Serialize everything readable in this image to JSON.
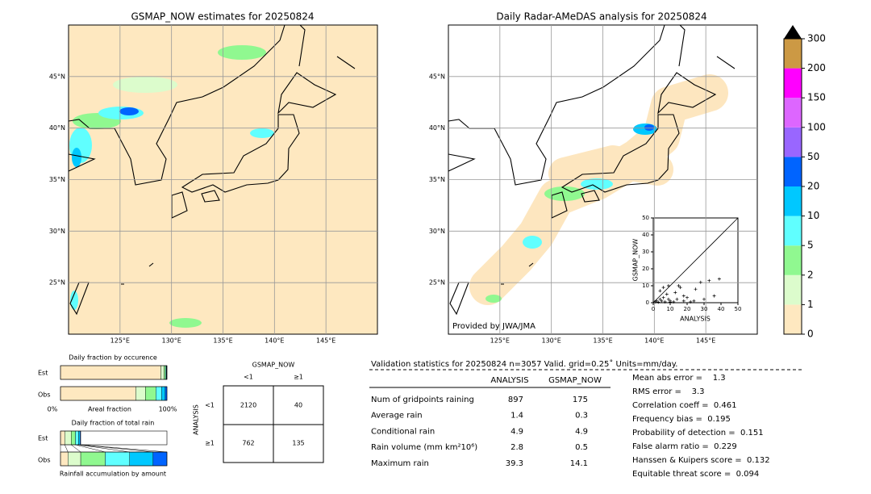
{
  "maps": [
    {
      "title": "GSMAP_NOW estimates for 20250824",
      "xlim": [
        120,
        150
      ],
      "ylim": [
        20,
        50
      ],
      "xticks": [
        {
          "value": 125,
          "label": "125°E"
        },
        {
          "value": 130,
          "label": "130°E"
        },
        {
          "value": 135,
          "label": "135°E"
        },
        {
          "value": 140,
          "label": "140°E"
        },
        {
          "value": 145,
          "label": "145°E"
        }
      ],
      "yticks": [
        {
          "value": 25,
          "label": "25°N"
        },
        {
          "value": 30,
          "label": "30°N"
        },
        {
          "value": 35,
          "label": "35°N"
        },
        {
          "value": 40,
          "label": "40°N"
        },
        {
          "value": 45,
          "label": "45°N"
        }
      ]
    },
    {
      "title": "Daily Radar-AMeDAS analysis for 20250824",
      "credit": "Provided by JWA/JMA",
      "xlim": [
        120,
        150
      ],
      "ylim": [
        20,
        50
      ],
      "xticks": [
        {
          "value": 125,
          "label": "125°E"
        },
        {
          "value": 130,
          "label": "130°E"
        },
        {
          "value": 135,
          "label": "135°E"
        },
        {
          "value": 140,
          "label": "140°E"
        },
        {
          "value": 145,
          "label": "145°E"
        }
      ],
      "yticks": [
        {
          "value": 25,
          "label": "25°N"
        },
        {
          "value": 30,
          "label": "30°N"
        },
        {
          "value": 35,
          "label": "35°N"
        },
        {
          "value": 40,
          "label": "40°N"
        },
        {
          "value": 45,
          "label": "45°N"
        }
      ]
    }
  ],
  "colorbar": {
    "ticks": [
      0,
      1,
      2,
      5,
      10,
      20,
      50,
      100,
      150,
      200,
      300
    ],
    "colors": [
      "#fee8c0",
      "#dcfccc",
      "#90f890",
      "#60ffff",
      "#00c8ff",
      "#0064ff",
      "#9966ff",
      "#dd66ff",
      "#ff00ff",
      "#cc9944"
    ]
  },
  "scatter": {
    "type": "scatter",
    "xlabel": "ANALYSIS",
    "ylabel": "GSMAP_NOW",
    "xlim": [
      0,
      50
    ],
    "ylim": [
      0,
      50
    ],
    "xticks": [
      0,
      10,
      20,
      30,
      40,
      50
    ],
    "yticks": [
      0,
      10,
      20,
      30,
      40,
      50
    ],
    "x": [
      1,
      2,
      3,
      4,
      5,
      6,
      7,
      8,
      9,
      10,
      12,
      14,
      16,
      18,
      20,
      22,
      25,
      28,
      30,
      33,
      36,
      39,
      4,
      6,
      9,
      13,
      15,
      18,
      24,
      10
    ],
    "y": [
      0.5,
      1,
      0.3,
      2,
      1,
      3,
      0.5,
      5,
      2,
      1,
      0.5,
      2,
      9,
      1,
      3,
      0.5,
      8,
      12,
      2,
      13,
      4,
      14,
      7,
      9,
      10,
      6,
      10,
      4,
      1,
      0.3
    ]
  },
  "occurrence": {
    "title": "Daily fraction by occurence",
    "rows": [
      "Est",
      "Obs"
    ],
    "xlabel": "Areal fraction",
    "left": "0%",
    "right": "100%",
    "colors": [
      "#fee8c0",
      "#dcfccc",
      "#90f890",
      "#60ffff",
      "#00c8ff",
      "#0064ff"
    ],
    "est": [
      94.3,
      3.0,
      1.5,
      0.7,
      0.3,
      0.2
    ],
    "obs": [
      70.7,
      9.1,
      9.8,
      5.3,
      3.5,
      1.6
    ]
  },
  "total_rain": {
    "title": "Daily fraction of total rain",
    "rows": [
      "Est",
      "Obs"
    ],
    "xlabel": "Rainfall accumulation by amount",
    "colors": [
      "#fee8c0",
      "#dcfccc",
      "#90f890",
      "#60ffff",
      "#00c8ff",
      "#0064ff"
    ],
    "est": [
      4,
      6,
      4,
      3,
      1.5,
      0.5
    ],
    "obs": [
      7,
      12,
      23,
      23,
      22,
      13
    ]
  },
  "contingency": {
    "title": "GSMAP_NOW",
    "col_labels": [
      "<1",
      "≥1"
    ],
    "row_title": "ANALYSIS",
    "row_labels": [
      "<1",
      "≥1"
    ],
    "cells": [
      [
        2120,
        40
      ],
      [
        762,
        135
      ]
    ]
  },
  "validation": {
    "header": "Validation statistics for 20250824  n=3057 Valid. grid=0.25˚ Units=mm/day.",
    "columns": [
      "ANALYSIS",
      "GSMAP_NOW"
    ],
    "rows": [
      {
        "label": "Num of gridpoints raining",
        "values": [
          897,
          175
        ]
      },
      {
        "label": "Average rain",
        "values": [
          1.4,
          0.3
        ]
      },
      {
        "label": "Conditional rain",
        "values": [
          4.9,
          4.9
        ]
      },
      {
        "label": "Rain volume (mm km²10⁶)",
        "values": [
          2.8,
          0.5
        ]
      },
      {
        "label": "Maximum rain",
        "values": [
          39.3,
          14.1
        ]
      }
    ],
    "scores": [
      "Mean abs error =    1.3",
      "RMS error =    3.3",
      "Correlation coeff =  0.461",
      "Frequency bias =  0.195",
      "Probability of detection =  0.151",
      "False alarm ratio =  0.229",
      "Hanssen & Kuipers score =  0.132",
      "Equitable threat score =  0.094"
    ]
  }
}
